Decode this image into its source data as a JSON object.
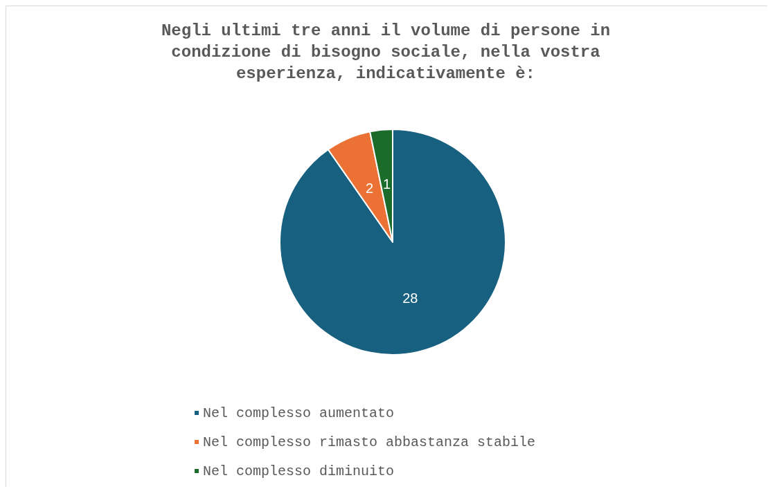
{
  "chart_data": {
    "type": "pie",
    "title": "Negli ultimi tre anni il volume di persone in condizione di bisogno sociale, nella vostra esperienza, indicativamente è:",
    "categories": [
      "Nel complesso aumentato",
      "Nel complesso rimasto abbastanza stabile",
      "Nel complesso diminuito"
    ],
    "values": [
      28,
      2,
      1
    ],
    "colors": [
      "#17607f",
      "#eb7134",
      "#1b6b2b"
    ],
    "data_labels": true,
    "legend": "bottom"
  }
}
